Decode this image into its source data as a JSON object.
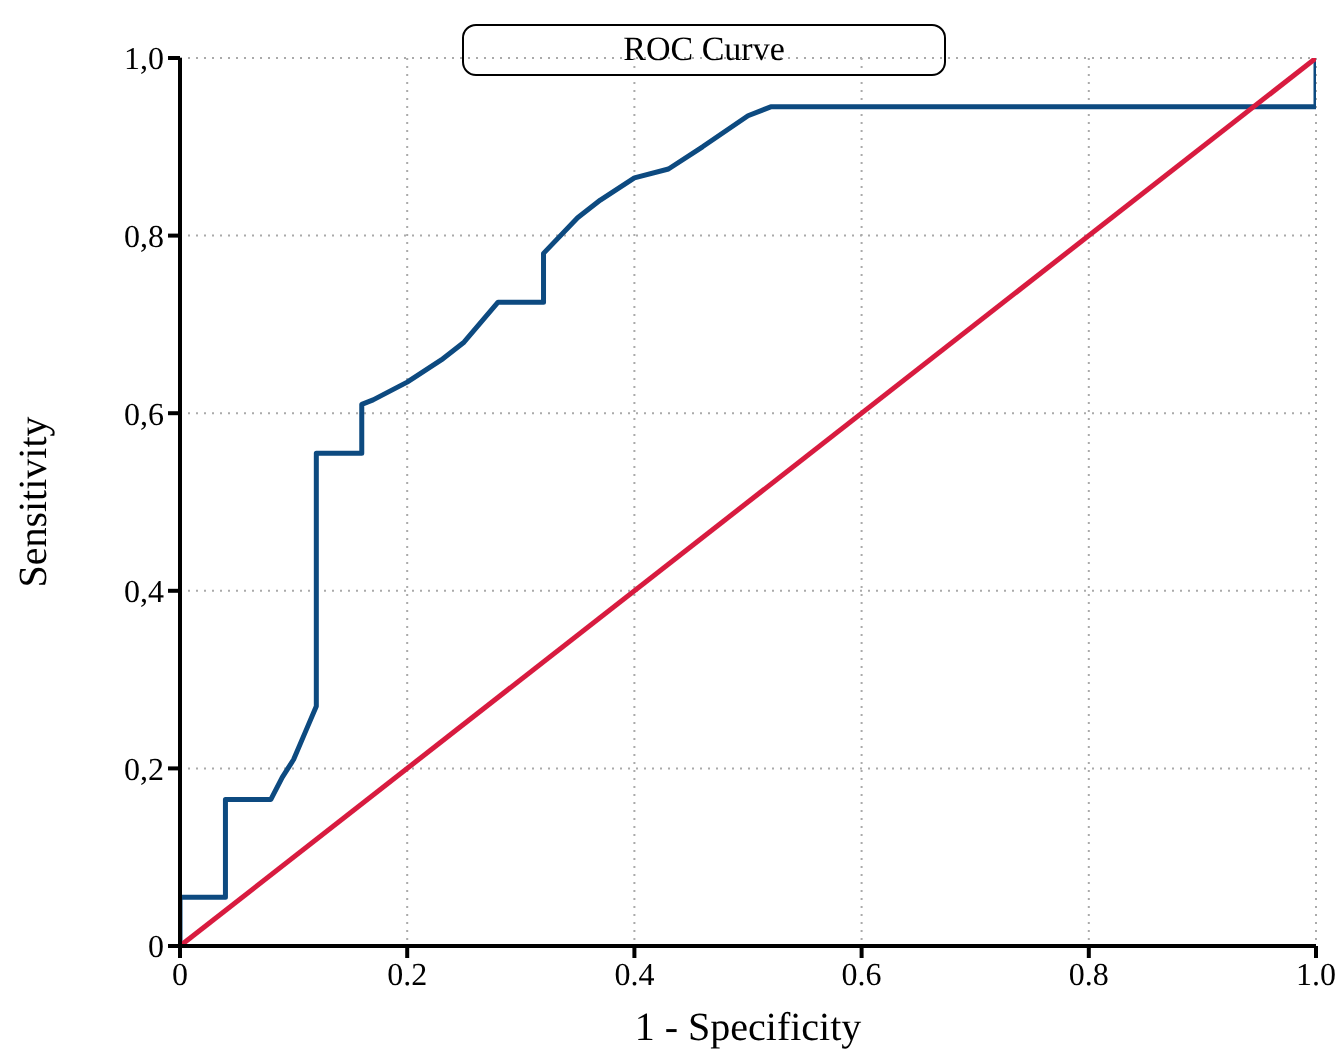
{
  "chart_data": {
    "type": "line",
    "title": "ROC Curve",
    "xlabel": "1 - Specificity",
    "ylabel": "Sensitivity",
    "series": [
      {
        "color": "#0d4a80",
        "x": [
          0,
          0,
          0.04,
          0.04,
          0.08,
          0.09,
          0.1,
          0.11,
          0.12,
          0.12,
          0.16,
          0.16,
          0.17,
          0.2,
          0.23,
          0.25,
          0.28,
          0.32,
          0.32,
          0.35,
          0.37,
          0.4,
          0.43,
          0.46,
          0.5,
          0.52,
          1.0,
          1.0
        ],
        "values": [
          0,
          0.055,
          0.055,
          0.165,
          0.165,
          0.19,
          0.21,
          0.24,
          0.27,
          0.555,
          0.555,
          0.61,
          0.615,
          0.635,
          0.66,
          0.68,
          0.725,
          0.725,
          0.78,
          0.82,
          0.84,
          0.865,
          0.875,
          0.9,
          0.935,
          0.945,
          0.945,
          1.0
        ]
      },
      {
        "color": "#d81b3f",
        "x": [
          0,
          1
        ],
        "values": [
          0,
          1
        ]
      }
    ],
    "xlim": [
      0,
      1
    ],
    "ylim": [
      0,
      1
    ],
    "xticks": [
      0,
      0.2,
      0.4,
      0.6,
      0.8,
      {
        "value": 1,
        "label": "1.0"
      }
    ],
    "yticks": [
      0,
      {
        "value": 0.2,
        "label": "0,2"
      },
      {
        "value": 0.4,
        "label": "0,4"
      },
      {
        "value": 0.6,
        "label": "0,6"
      },
      {
        "value": 0.8,
        "label": "0,8"
      },
      {
        "value": 1,
        "label": "1,0"
      }
    ],
    "grid": true,
    "legend": false,
    "marker": "none",
    "line_style": "solid"
  }
}
